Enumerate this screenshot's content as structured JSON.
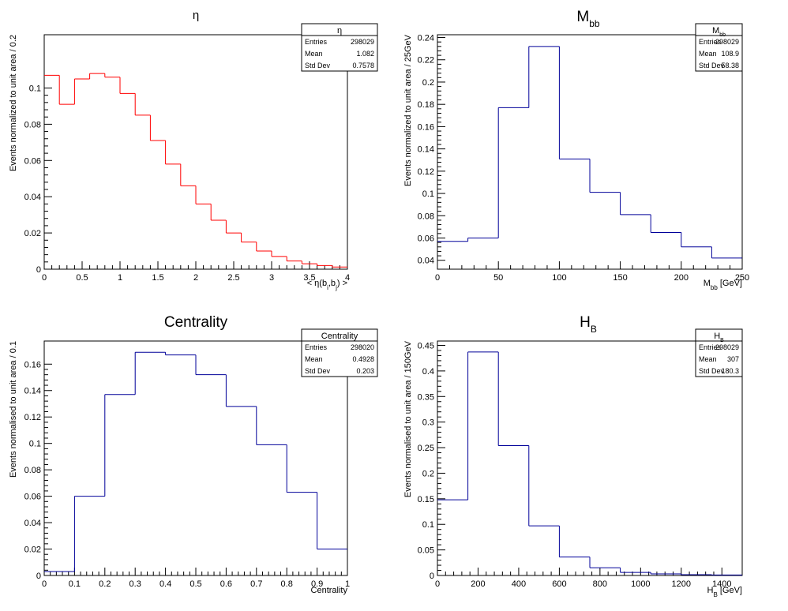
{
  "chart_data": [
    {
      "type": "histogram",
      "title": "η",
      "xlabel": "< η(b_i,b_j) >",
      "ylabel": "Events normalized to unit area / 0.2",
      "xlim": [
        0,
        4
      ],
      "ylim": [
        0,
        0.1294
      ],
      "xticks": [
        0,
        0.5,
        1,
        1.5,
        2,
        2.5,
        3,
        3.5,
        4
      ],
      "xtick_labels": [
        "0",
        "0.5",
        "1",
        "1.5",
        "2",
        "2.5",
        "3",
        "3.5",
        "4"
      ],
      "yticks": [
        0,
        0.02,
        0.04,
        0.06,
        0.08,
        0.1
      ],
      "ytick_labels": [
        "0",
        "0.02",
        "0.04",
        "0.06",
        "0.08",
        "0.1"
      ],
      "line_color": "#ff0000",
      "bin_edges": [
        0,
        0.2,
        0.4,
        0.6,
        0.8,
        1.0,
        1.2,
        1.4,
        1.6,
        1.8,
        2.0,
        2.2,
        2.4,
        2.6,
        2.8,
        3.0,
        3.2,
        3.4,
        3.6,
        3.8,
        4.0
      ],
      "values": [
        0.107,
        0.091,
        0.105,
        0.108,
        0.106,
        0.097,
        0.085,
        0.071,
        0.058,
        0.046,
        0.036,
        0.027,
        0.02,
        0.015,
        0.01,
        0.007,
        0.0045,
        0.003,
        0.002,
        0.0012
      ],
      "stats": {
        "title": "η",
        "rows": [
          [
            "Entries",
            "298029"
          ],
          [
            "Mean",
            "1.082"
          ],
          [
            "Std Dev",
            "0.7578"
          ]
        ]
      }
    },
    {
      "type": "histogram",
      "title": "M_bb",
      "xlabel": "M_bb [GeV]",
      "ylabel": "Events normalized to unit area / 25GeV",
      "xlim": [
        0,
        250
      ],
      "ylim": [
        0.032,
        0.2425
      ],
      "xticks": [
        0,
        50,
        100,
        150,
        200,
        250
      ],
      "xtick_labels": [
        "0",
        "50",
        "100",
        "150",
        "200",
        "250"
      ],
      "yticks": [
        0.04,
        0.06,
        0.08,
        0.1,
        0.12,
        0.14,
        0.16,
        0.18,
        0.2,
        0.22,
        0.24
      ],
      "ytick_labels": [
        "0.04",
        "0.06",
        "0.08",
        "0.1",
        "0.12",
        "0.14",
        "0.16",
        "0.18",
        "0.2",
        "0.22",
        "0.24"
      ],
      "line_color": "#000099",
      "bin_edges": [
        0,
        25,
        50,
        75,
        100,
        125,
        150,
        175,
        200,
        225,
        250
      ],
      "values": [
        0.057,
        0.06,
        0.177,
        0.232,
        0.131,
        0.101,
        0.081,
        0.065,
        0.052,
        0.042
      ],
      "stats": {
        "title": "M_bb",
        "rows": [
          [
            "Entries",
            "298029"
          ],
          [
            "Mean",
            "108.9"
          ],
          [
            "Std Dev",
            "58.38"
          ]
        ]
      }
    },
    {
      "type": "histogram",
      "title": "Centrality",
      "xlabel": "Centrality",
      "ylabel": "Events normalised to unit area / 0.1",
      "xlim": [
        0,
        1
      ],
      "ylim": [
        0,
        0.1775
      ],
      "xticks": [
        0,
        0.1,
        0.2,
        0.3,
        0.4,
        0.5,
        0.6,
        0.7,
        0.8,
        0.9,
        1
      ],
      "xtick_labels": [
        "0",
        "0.1",
        "0.2",
        "0.3",
        "0.4",
        "0.5",
        "0.6",
        "0.7",
        "0.8",
        "0.9",
        "1"
      ],
      "yticks": [
        0,
        0.02,
        0.04,
        0.06,
        0.08,
        0.1,
        0.12,
        0.14,
        0.16
      ],
      "ytick_labels": [
        "0",
        "0.02",
        "0.04",
        "0.06",
        "0.08",
        "0.1",
        "0.12",
        "0.14",
        "0.16"
      ],
      "line_color": "#000099",
      "bin_edges": [
        0,
        0.1,
        0.2,
        0.3,
        0.4,
        0.5,
        0.6,
        0.7,
        0.8,
        0.9,
        1.0
      ],
      "values": [
        0.003,
        0.06,
        0.137,
        0.169,
        0.167,
        0.152,
        0.128,
        0.099,
        0.063,
        0.02
      ],
      "stats": {
        "title": "Centrality",
        "rows": [
          [
            "Entries",
            "298020"
          ],
          [
            "Mean",
            "0.4928"
          ],
          [
            "Std Dev",
            "0.203"
          ]
        ]
      }
    },
    {
      "type": "histogram",
      "title": "H_B",
      "xlabel": "H_B [GeV]",
      "ylabel": "Events normalised to unit area / 150GeV",
      "xlim": [
        0,
        1500
      ],
      "ylim": [
        0,
        0.4585
      ],
      "xticks": [
        0,
        200,
        400,
        600,
        800,
        1000,
        1200,
        1400
      ],
      "xtick_labels": [
        "0",
        "200",
        "400",
        "600",
        "800",
        "1000",
        "1200",
        "1400"
      ],
      "yticks": [
        0,
        0.05,
        0.1,
        0.15,
        0.2,
        0.25,
        0.3,
        0.35,
        0.4,
        0.45
      ],
      "ytick_labels": [
        "0",
        "0.05",
        "0.1",
        "0.15",
        "0.2",
        "0.25",
        "0.3",
        "0.35",
        "0.4",
        "0.45"
      ],
      "line_color": "#000099",
      "bin_edges": [
        0,
        150,
        300,
        450,
        600,
        750,
        900,
        1050,
        1200,
        1350,
        1500
      ],
      "values": [
        0.148,
        0.437,
        0.254,
        0.097,
        0.036,
        0.015,
        0.006,
        0.003,
        0.0015,
        0.001
      ],
      "stats": {
        "title": "H_B",
        "rows": [
          [
            "Entries",
            "298029"
          ],
          [
            "Mean",
            "307"
          ],
          [
            "Std Dev",
            "180.3"
          ]
        ]
      }
    }
  ]
}
